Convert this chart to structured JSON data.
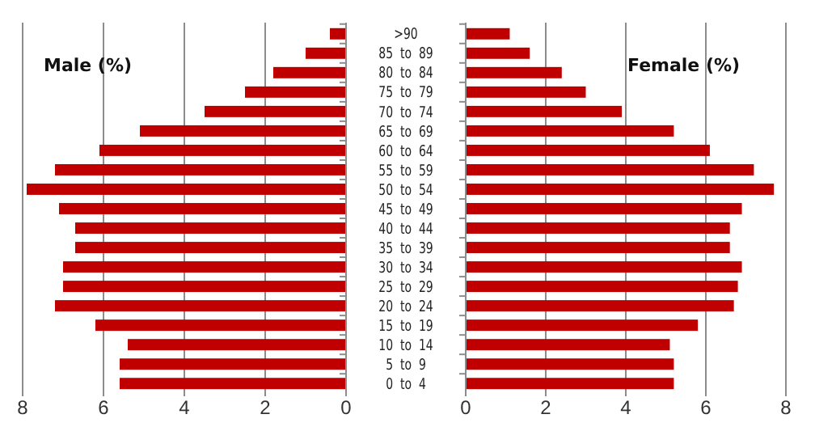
{
  "chart_data": [
    {
      "type": "bar",
      "orientation": "horizontal",
      "title": "Male (%)",
      "categories": [
        ">90",
        "85  to  89",
        "80  to  84",
        "75  to  79",
        "70  to  74",
        "65  to  69",
        "60  to  64",
        "55  to  59",
        "50  to  54",
        "45  to  49",
        "40  to  44",
        "35  to  39",
        "30  to  34",
        "25  to  29",
        "20  to  24",
        "15  to  19",
        "10  to  14",
        "5  to  9",
        "0  to  4"
      ],
      "values": [
        0.4,
        1.0,
        1.8,
        2.5,
        3.5,
        5.1,
        6.1,
        7.2,
        7.9,
        7.1,
        6.7,
        6.7,
        7.0,
        7.0,
        7.2,
        6.2,
        5.4,
        5.6,
        5.6
      ],
      "color": "#c00000",
      "xlim": [
        8,
        0
      ],
      "xticks": [
        8,
        6,
        4,
        2,
        0
      ],
      "grid": "x"
    },
    {
      "type": "bar",
      "orientation": "horizontal",
      "title": "Female (%)",
      "categories": [
        ">90",
        "85  to  89",
        "80  to  84",
        "75  to  79",
        "70  to  74",
        "65  to  69",
        "60  to  64",
        "55  to  59",
        "50  to  54",
        "45  to  49",
        "40  to  44",
        "35  to  39",
        "30  to  34",
        "25  to  29",
        "20  to  24",
        "15  to  19",
        "10  to  14",
        "5  to  9",
        "0  to  4"
      ],
      "values": [
        1.1,
        1.6,
        2.4,
        3.0,
        3.9,
        5.2,
        6.1,
        7.2,
        7.7,
        6.9,
        6.6,
        6.6,
        6.9,
        6.8,
        6.7,
        5.8,
        5.1,
        5.2,
        5.2
      ],
      "color": "#c00000",
      "xlim": [
        0,
        8
      ],
      "xticks": [
        0,
        2,
        4,
        6,
        8
      ],
      "grid": "x",
      "tick_labels": "x"
    }
  ]
}
